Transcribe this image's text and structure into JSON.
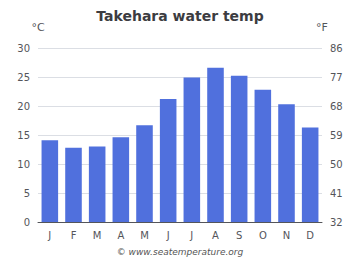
{
  "chart_data": {
    "type": "bar",
    "title": "Takehara water temp",
    "categories": [
      "J",
      "F",
      "M",
      "A",
      "M",
      "J",
      "J",
      "A",
      "S",
      "O",
      "N",
      "D"
    ],
    "values": [
      14.1,
      12.8,
      13.0,
      14.6,
      16.7,
      21.2,
      24.9,
      26.6,
      25.2,
      22.8,
      20.3,
      16.3
    ],
    "ylabel": "°C",
    "ylim": [
      0,
      30
    ],
    "yticks": [
      0,
      5,
      10,
      15,
      20,
      25,
      30
    ],
    "y2label": "°F",
    "y2lim": [
      32,
      86
    ],
    "y2ticks": [
      32,
      41,
      50,
      59,
      68,
      77,
      86
    ],
    "grid": true,
    "annotation": "© www.seatemperature.org"
  }
}
